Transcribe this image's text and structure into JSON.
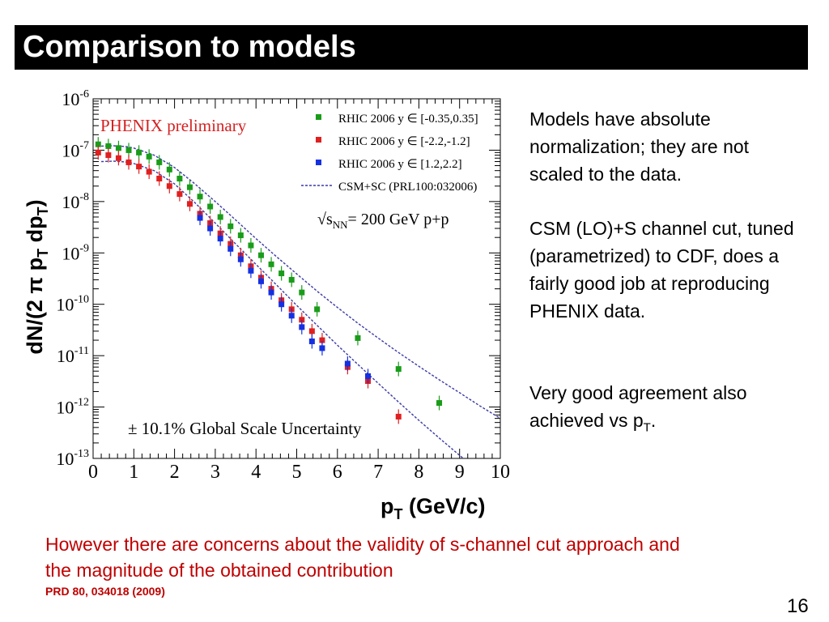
{
  "slide": {
    "title": "Comparison to models",
    "bullet1": "Models have absolute normalization; they are not scaled to the data.",
    "bullet2": "CSM (LO)+S channel cut, tuned (parametrized) to CDF, does a fairly good job at reproducing PHENIX data.",
    "bullet3_main": "Very good agreement also achieved vs p",
    "bullet3_sub": "T",
    "bullet3_end": ".",
    "concern": "However there are concerns about the validity of s-channel cut approach and the magnitude of the obtained contribution",
    "reference": "PRD 80, 034018 (2009)",
    "page_number": "16"
  },
  "chart_data": {
    "type": "scatter",
    "plot_label": "PHENIX preliminary",
    "energy_label": "= 200 GeV p+p",
    "energy_label_prefix": "s",
    "energy_label_sub": "NN",
    "uncertainty_note": "± 10.1% Global Scale Uncertainty",
    "xlabel": "p",
    "xlabel_sub": "T",
    "xlabel_unit": "(GeV/c)",
    "ylabel": "dN/(2 π p",
    "ylabel_sub": "T",
    "ylabel_mid": " dp",
    "ylabel_sub2": "T",
    "ylabel_end": ")",
    "log_y": true,
    "xlim": [
      0,
      10
    ],
    "ylim": [
      1e-13,
      1e-06
    ],
    "x_ticks": [
      "0",
      "1",
      "2",
      "3",
      "4",
      "5",
      "6",
      "7",
      "8",
      "9",
      "10"
    ],
    "y_tick_exponents": [
      "-6",
      "-7",
      "-8",
      "-9",
      "-10",
      "-11",
      "-12",
      "-13"
    ],
    "y_tick_base": "10",
    "legend_position": "top-right",
    "series": [
      {
        "name": "RHIC 2006 y ∈ [-0.35,0.35]",
        "color": "#1a9c1a",
        "marker": "square",
        "points": [
          {
            "x": 0.125,
            "y": 1.3e-07
          },
          {
            "x": 0.375,
            "y": 1.2e-07
          },
          {
            "x": 0.625,
            "y": 1.1e-07
          },
          {
            "x": 0.875,
            "y": 1e-07
          },
          {
            "x": 1.125,
            "y": 9e-08
          },
          {
            "x": 1.375,
            "y": 7.5e-08
          },
          {
            "x": 1.625,
            "y": 5.8e-08
          },
          {
            "x": 1.875,
            "y": 4.2e-08
          },
          {
            "x": 2.125,
            "y": 2.8e-08
          },
          {
            "x": 2.375,
            "y": 1.9e-08
          },
          {
            "x": 2.625,
            "y": 1.25e-08
          },
          {
            "x": 2.875,
            "y": 8e-09
          },
          {
            "x": 3.125,
            "y": 5e-09
          },
          {
            "x": 3.375,
            "y": 3.3e-09
          },
          {
            "x": 3.625,
            "y": 2.2e-09
          },
          {
            "x": 3.875,
            "y": 1.4e-09
          },
          {
            "x": 4.125,
            "y": 9e-10
          },
          {
            "x": 4.375,
            "y": 6e-10
          },
          {
            "x": 4.625,
            "y": 4e-10
          },
          {
            "x": 4.875,
            "y": 3e-10
          },
          {
            "x": 5.125,
            "y": 1.7e-10
          },
          {
            "x": 5.5,
            "y": 8e-11
          },
          {
            "x": 6.5,
            "y": 2.2e-11
          },
          {
            "x": 7.5,
            "y": 5.5e-12
          },
          {
            "x": 8.5,
            "y": 1.2e-12
          }
        ]
      },
      {
        "name": "RHIC 2006 y ∈ [-2.2,-1.2]",
        "color": "#e02020",
        "marker": "square",
        "points": [
          {
            "x": 0.125,
            "y": 9e-08
          },
          {
            "x": 0.375,
            "y": 8e-08
          },
          {
            "x": 0.625,
            "y": 7e-08
          },
          {
            "x": 0.875,
            "y": 5.8e-08
          },
          {
            "x": 1.125,
            "y": 4.8e-08
          },
          {
            "x": 1.375,
            "y": 3.8e-08
          },
          {
            "x": 1.625,
            "y": 2.8e-08
          },
          {
            "x": 1.875,
            "y": 2e-08
          },
          {
            "x": 2.125,
            "y": 1.4e-08
          },
          {
            "x": 2.375,
            "y": 9e-09
          },
          {
            "x": 2.625,
            "y": 5.8e-09
          },
          {
            "x": 2.875,
            "y": 3.8e-09
          },
          {
            "x": 3.125,
            "y": 2.4e-09
          },
          {
            "x": 3.375,
            "y": 1.5e-09
          },
          {
            "x": 3.625,
            "y": 9e-10
          },
          {
            "x": 3.875,
            "y": 5.5e-10
          },
          {
            "x": 4.125,
            "y": 3.3e-10
          },
          {
            "x": 4.375,
            "y": 2e-10
          },
          {
            "x": 4.625,
            "y": 1.2e-10
          },
          {
            "x": 4.875,
            "y": 8e-11
          },
          {
            "x": 5.125,
            "y": 5e-11
          },
          {
            "x": 5.375,
            "y": 3e-11
          },
          {
            "x": 5.625,
            "y": 2e-11
          },
          {
            "x": 6.25,
            "y": 6e-12
          },
          {
            "x": 6.75,
            "y": 3.2e-12
          },
          {
            "x": 7.5,
            "y": 6.5e-13
          }
        ]
      },
      {
        "name": "RHIC 2006 y ∈ [1.2,2.2]",
        "color": "#1530e0",
        "marker": "square",
        "points": [
          {
            "x": 2.625,
            "y": 4.8e-09
          },
          {
            "x": 2.875,
            "y": 3e-09
          },
          {
            "x": 3.125,
            "y": 1.9e-09
          },
          {
            "x": 3.375,
            "y": 1.2e-09
          },
          {
            "x": 3.625,
            "y": 7.5e-10
          },
          {
            "x": 3.875,
            "y": 4.5e-10
          },
          {
            "x": 4.125,
            "y": 2.8e-10
          },
          {
            "x": 4.375,
            "y": 1.7e-10
          },
          {
            "x": 4.625,
            "y": 1e-10
          },
          {
            "x": 4.875,
            "y": 6e-11
          },
          {
            "x": 5.125,
            "y": 3.6e-11
          },
          {
            "x": 5.375,
            "y": 1.9e-11
          },
          {
            "x": 5.625,
            "y": 1.4e-11
          },
          {
            "x": 6.25,
            "y": 7e-12
          },
          {
            "x": 6.75,
            "y": 4e-12
          }
        ]
      }
    ],
    "model": {
      "name": "CSM+SC (PRL100:032006)",
      "color": "#3a3aa8",
      "curves": [
        {
          "x": [
            0.2,
            0.5,
            0.8,
            1.0,
            1.5,
            2.0,
            2.5,
            3.0,
            3.5,
            4.0,
            4.5,
            5.0,
            5.5,
            6.0,
            6.5,
            7.0,
            7.5,
            8.0,
            8.5,
            9.0,
            9.5,
            10.0
          ],
          "y": [
            1.2e-07,
            1.22e-07,
            1.18e-07,
            1.1e-07,
            8e-08,
            4.6e-08,
            2.2e-08,
            1e-08,
            4.4e-09,
            1.9e-09,
            8.5e-10,
            3.9e-10,
            1.8e-10,
            8.7e-11,
            4.3e-11,
            2.2e-11,
            1.15e-11,
            6.2e-12,
            3.4e-12,
            1.9e-12,
            1.05e-12,
            6e-13
          ]
        },
        {
          "x": [
            0.2,
            0.5,
            0.8,
            1.0,
            1.5,
            2.0,
            2.5,
            3.0,
            3.5,
            4.0,
            4.5,
            5.0,
            5.5,
            6.0,
            6.5,
            7.0,
            7.5,
            8.0,
            8.5,
            9.0,
            9.5,
            10.0
          ],
          "y": [
            6e-08,
            6.1e-08,
            5.9e-08,
            5.5e-08,
            4e-08,
            2.2e-08,
            9.5e-09,
            3.8e-09,
            1.5e-09,
            6e-10,
            2.4e-10,
            9.5e-11,
            3.9e-11,
            1.6e-11,
            6.8e-12,
            2.9e-12,
            1.25e-12,
            5.5e-13,
            2.5e-13,
            1.15e-13,
            5.5e-14,
            2.6e-14
          ]
        }
      ]
    }
  }
}
